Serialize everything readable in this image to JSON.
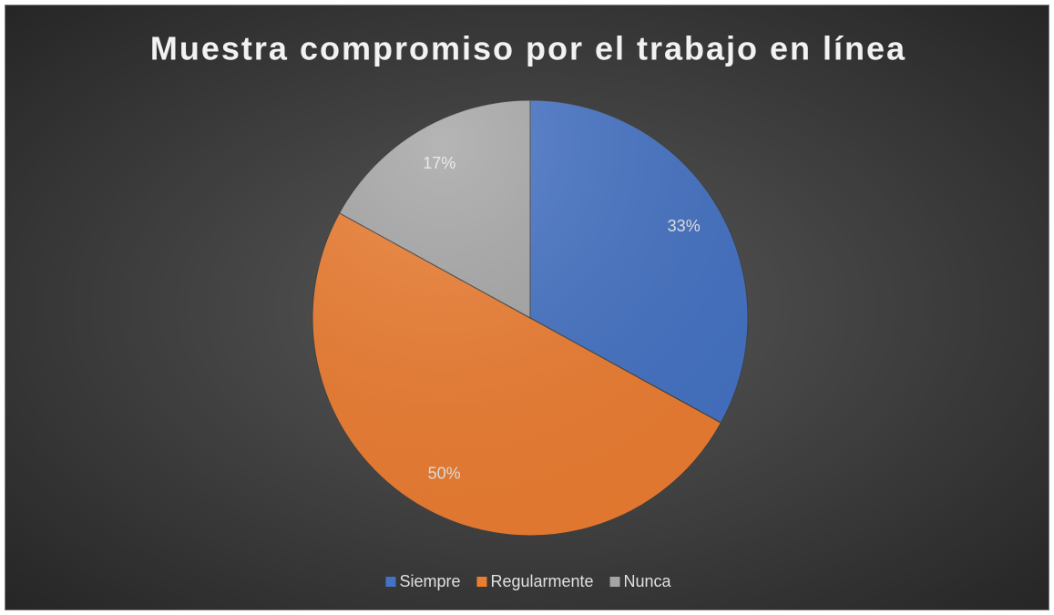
{
  "chart_data": {
    "type": "pie",
    "title": "Muestra compromiso por el trabajo en línea",
    "categories": [
      "Siempre",
      "Regularmente",
      "Nunca"
    ],
    "values": [
      33,
      50,
      17
    ],
    "value_labels": [
      "33%",
      "50%",
      "17%"
    ],
    "colors": [
      "#4472c4",
      "#ed7d31",
      "#a5a5a5"
    ],
    "legend": "bottom"
  }
}
